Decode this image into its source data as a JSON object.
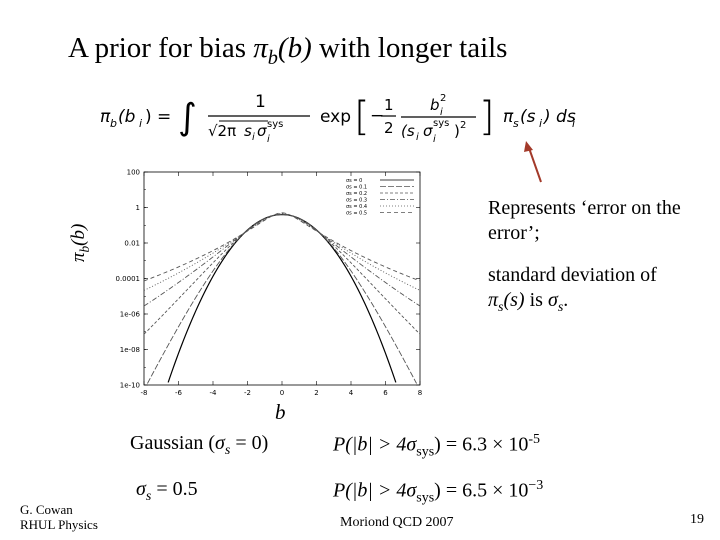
{
  "slide": {
    "title_text": "A prior for bias ",
    "title_symbol": "π",
    "title_sub": "b",
    "title_arg": "(b)",
    "title_rest": " with longer tails",
    "formula": {
      "lhs": "π",
      "lhs_sub": "b",
      "lhs_arg": "(b",
      "lhs_arg_sub": "i",
      "lhs_close": ") =",
      "integral": "∫",
      "frac1_num": "1",
      "frac1_den_sqrt": "√2π",
      "frac1_den_s": "s",
      "frac1_den_s_sub": "i",
      "frac1_den_sigma": "σ",
      "frac1_den_sigma_sup": "sys",
      "frac1_den_sigma_sub": "i",
      "exp": "exp",
      "bracket_left": "[",
      "bracket_right": "]",
      "frac2_num": "1",
      "frac2_den": "2",
      "frac2_minus": "−",
      "frac3_num_b": "b",
      "frac3_num_sub": "i",
      "frac3_num_sup": "2",
      "frac3_den": "(s",
      "frac3_den_sub": "i",
      "frac3_den_sigma": "σ",
      "frac3_den_sigma_sup": "sys",
      "frac3_den_sigma_sub": "i",
      "frac3_den_close": ")",
      "frac3_den_sup": "2",
      "rhs_pi": "π",
      "rhs_sub": "s",
      "rhs_arg": "(s",
      "rhs_arg_sub": "i",
      "rhs_close": ") ds",
      "rhs_ds_sub": "i"
    },
    "y_axis_label_symbol": "π",
    "y_axis_label_sub": "b",
    "y_axis_label_arg": "(b)",
    "x_axis_label": "b",
    "note1": "Represents ‘error on the error’;",
    "note2_a": "standard deviation of ",
    "note2_pi": "π",
    "note2_sub": "s",
    "note2_arg": "(s)",
    "note2_b": " is ",
    "note2_sigma": "σ",
    "note2_sigma_sub": "s",
    "note2_end": ".",
    "row1_left_a": "Gaussian (",
    "row1_left_sigma": "σ",
    "row1_left_sub": "s",
    "row1_left_b": " = 0)",
    "row1_right_a": "P(|b| > 4",
    "row1_right_sigma": "σ",
    "row1_right_sub": "sys",
    "row1_right_b": ")  =  6.3 × 10",
    "row1_right_exp": "-5",
    "row2_left_sigma": "σ",
    "row2_left_sub": "s",
    "row2_left_b": " = 0.5",
    "row2_right_a": "P(|b| > 4",
    "row2_right_sigma": "σ",
    "row2_right_sub": "sys",
    "row2_right_b": ")  =  6.5 × 10",
    "row2_right_exp": "−3",
    "footer_author": "G. Cowan",
    "footer_affil": "RHUL Physics",
    "footer_conf": "Moriond QCD 2007",
    "page_number": "19"
  },
  "chart_data": {
    "type": "line",
    "x_ticks": [
      "-8",
      "-6",
      "-4",
      "-2",
      "0",
      "2",
      "4",
      "6",
      "8"
    ],
    "y_ticks": [
      "100",
      "1",
      "0.01",
      "0.0001",
      "1e-06",
      "1e-08",
      "1e-10"
    ],
    "xlim": [
      -8,
      8
    ],
    "ylim_log10": [
      -10,
      2
    ],
    "y_scale": "log",
    "legend_position": "top-right",
    "series": [
      {
        "name": "σs = 0",
        "sigma_s": 0
      },
      {
        "name": "σs = 0.1",
        "sigma_s": 0.1
      },
      {
        "name": "σs = 0.2",
        "sigma_s": 0.2
      },
      {
        "name": "σs = 0.3",
        "sigma_s": 0.3
      },
      {
        "name": "σs = 0.4",
        "sigma_s": 0.4
      },
      {
        "name": "σs = 0.5",
        "sigma_s": 0.5
      }
    ]
  }
}
